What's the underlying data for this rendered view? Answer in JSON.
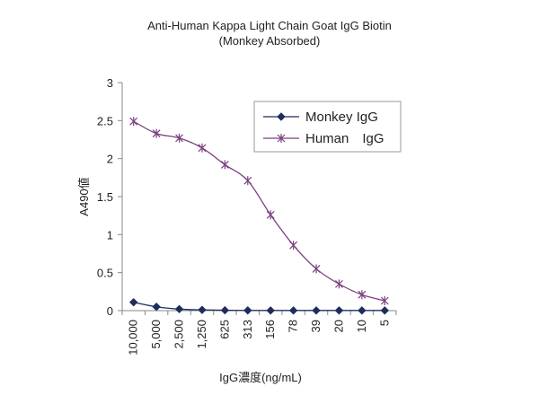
{
  "chart_data": {
    "type": "line",
    "title": "Anti-Human Kappa Light Chain Goat IgG Biotin",
    "subtitle": "(Monkey Absorbed)",
    "xlabel": "IgG濃度(ng/mL)",
    "ylabel": "A490値",
    "categories": [
      "10,000",
      "5,000",
      "2,500",
      "1,250",
      "625",
      "313",
      "156",
      "78",
      "39",
      "20",
      "10",
      "5"
    ],
    "ylim": [
      0,
      3
    ],
    "yticks": [
      "0",
      "0.5",
      "1",
      "1.5",
      "2",
      "2.5",
      "3"
    ],
    "grid": false,
    "legend_position": "top-right",
    "series": [
      {
        "name": "Monkey IgG",
        "color": "#1f2d5c",
        "marker": "diamond",
        "values": [
          0.11,
          0.05,
          0.02,
          0.01,
          0.005,
          0.003,
          0.002,
          0.002,
          0.002,
          0.002,
          0.002,
          0.002
        ]
      },
      {
        "name": "Human　IgG",
        "color": "#7b3f7f",
        "marker": "star",
        "values": [
          2.49,
          2.33,
          2.27,
          2.14,
          1.92,
          1.71,
          1.26,
          0.86,
          0.55,
          0.35,
          0.21,
          0.13
        ]
      }
    ]
  }
}
